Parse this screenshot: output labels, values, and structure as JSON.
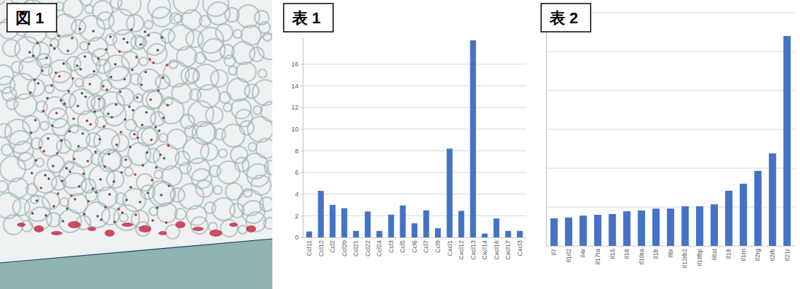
{
  "image": {
    "label": "図 1"
  },
  "chart_data": [
    {
      "type": "bar",
      "title": "表 1",
      "categories": [
        "Ccl11",
        "Ccl12",
        "Ccl2",
        "Ccl20",
        "Ccl21",
        "Ccl22",
        "Ccl24",
        "Ccl3",
        "Ccl5",
        "Ccl6",
        "Ccl7",
        "Ccl9",
        "Cxcl1",
        "Cxcl12",
        "Cxcl13",
        "Cxcl14",
        "Cxcl16",
        "Cxcl17",
        "Cxcl3"
      ],
      "values": [
        0.55,
        4.3,
        3.0,
        2.7,
        0.6,
        2.4,
        0.6,
        2.1,
        2.95,
        1.3,
        2.5,
        0.85,
        8.2,
        2.45,
        18.2,
        0.35,
        1.75,
        0.6,
        0.6
      ],
      "color": "#4472c4",
      "ylim": [
        0,
        18.4
      ],
      "yticks": [
        0,
        2,
        4,
        6,
        8,
        10,
        12,
        14,
        16
      ],
      "grid": true
    },
    {
      "type": "bar",
      "title": "表 2",
      "categories": [
        "Il7",
        "Il1rl2",
        "Il4r",
        "Il17ra",
        "Il15",
        "Il16",
        "Il10ra",
        "Il1b",
        "Il6r",
        "Il12rb2",
        "Il18bp",
        "Il6st",
        "Il18",
        "Il1rn",
        "Il2rg",
        "Il2rb",
        "Il21r"
      ],
      "values": [
        0.71,
        0.73,
        0.78,
        0.8,
        0.82,
        0.89,
        0.91,
        0.96,
        0.96,
        1.02,
        1.02,
        1.07,
        1.42,
        1.6,
        1.93,
        2.38,
        5.4
      ],
      "color": "#4472c4",
      "ylim": [
        0,
        6
      ],
      "yticks": [
        0,
        1,
        2,
        3,
        4,
        5,
        6
      ],
      "grid": true,
      "tick_labels": "x"
    }
  ]
}
